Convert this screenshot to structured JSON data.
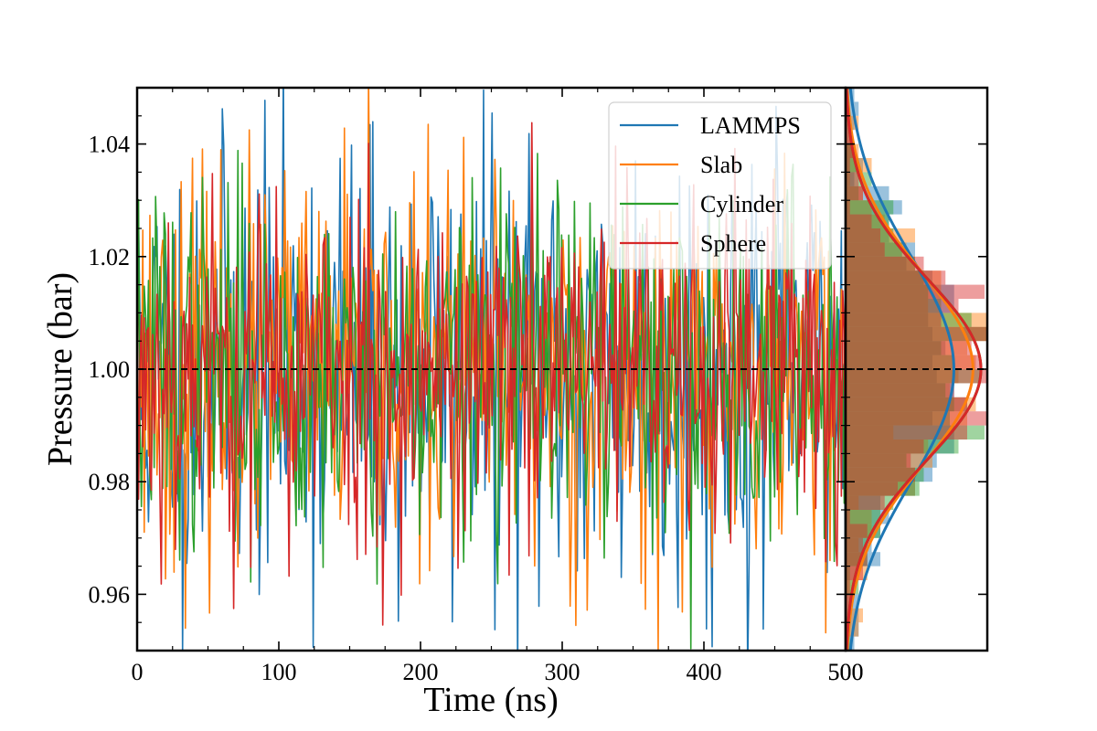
{
  "chart_data": [
    {
      "type": "line",
      "title": "",
      "xlabel": "Time (ns)",
      "ylabel": "Pressure (bar)",
      "xlim": [
        0,
        500
      ],
      "ylim": [
        0.95,
        1.05
      ],
      "xticks": [
        0,
        100,
        200,
        300,
        400,
        500
      ],
      "xtick_labels": [
        "0",
        "100",
        "200",
        "300",
        "400",
        "500"
      ],
      "yticks": [
        0.96,
        0.98,
        1.0,
        1.02,
        1.04
      ],
      "ytick_labels": [
        "0.96",
        "0.98",
        "1.00",
        "1.02",
        "1.04"
      ],
      "reference_line": {
        "y": 1.0,
        "style": "dashed",
        "color": "#000000"
      },
      "legend_position": "top-right",
      "series": [
        {
          "name": "LAMMPS",
          "color": "#1f77b4",
          "mean": 1.0,
          "std": 0.02,
          "seed": 11
        },
        {
          "name": "Slab",
          "color": "#ff7f0e",
          "mean": 1.0,
          "std": 0.017,
          "seed": 23
        },
        {
          "name": "Cylinder",
          "color": "#2ca02c",
          "mean": 1.0,
          "std": 0.016,
          "seed": 37
        },
        {
          "name": "Sphere",
          "color": "#d62728",
          "mean": 1.0,
          "std": 0.016,
          "seed": 53
        }
      ],
      "samples_per_series": 500
    },
    {
      "type": "histogram",
      "orientation": "horizontal",
      "title": "",
      "ylim": [
        0.95,
        1.05
      ],
      "xtick_labels": [],
      "bin_width": 0.0025,
      "series": [
        {
          "name": "LAMMPS",
          "color": "#1f77b4",
          "mean": 1.0,
          "std": 0.02
        },
        {
          "name": "Slab",
          "color": "#ff7f0e",
          "mean": 1.0,
          "std": 0.017
        },
        {
          "name": "Cylinder",
          "color": "#2ca02c",
          "mean": 1.0,
          "std": 0.016
        },
        {
          "name": "Sphere",
          "color": "#d62728",
          "mean": 1.0,
          "std": 0.016
        }
      ]
    }
  ]
}
